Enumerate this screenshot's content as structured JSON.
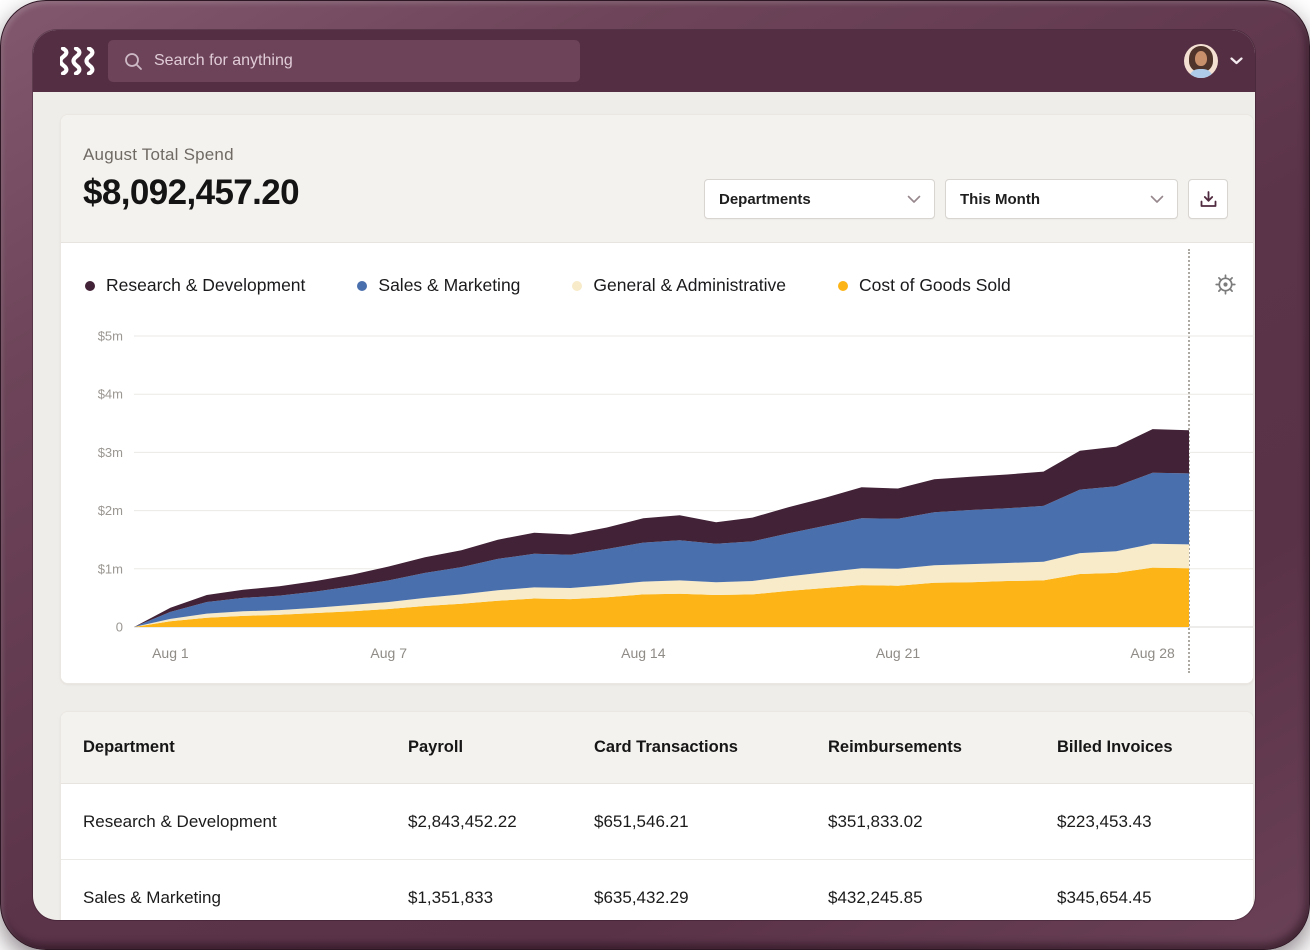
{
  "topbar": {
    "search_placeholder": "Search for anything"
  },
  "spend_card": {
    "title": "August Total Spend",
    "amount": "$8,092,457.20",
    "filters": [
      {
        "label": "Departments"
      },
      {
        "label": "This Month"
      }
    ]
  },
  "chart_data": {
    "type": "area",
    "stacked": true,
    "legend_position": "top",
    "grid": true,
    "values_unit": "millions_usd",
    "x_axis": {
      "tick_labels": [
        "Aug 1",
        "Aug 7",
        "Aug 14",
        "Aug 21",
        "Aug 28"
      ],
      "tick_days": [
        1,
        7,
        14,
        21,
        28
      ],
      "n_points": 30
    },
    "y_axis": {
      "tick_labels": [
        "$5m",
        "$4m",
        "$3m",
        "$2m",
        "$1m",
        "0"
      ],
      "tick_values": [
        5,
        4,
        3,
        2,
        1,
        0
      ],
      "ylim": [
        0,
        5
      ]
    },
    "series": [
      {
        "name": "Research & Development",
        "color": "#412236",
        "values": [
          0,
          0.07,
          0.12,
          0.14,
          0.16,
          0.18,
          0.2,
          0.24,
          0.27,
          0.29,
          0.33,
          0.36,
          0.35,
          0.37,
          0.42,
          0.43,
          0.37,
          0.41,
          0.45,
          0.48,
          0.53,
          0.52,
          0.57,
          0.57,
          0.58,
          0.59,
          0.67,
          0.68,
          0.75,
          0.74
        ]
      },
      {
        "name": "Sales & Marketing",
        "color": "#4A6FAD",
        "values": [
          0,
          0.12,
          0.2,
          0.23,
          0.25,
          0.28,
          0.32,
          0.37,
          0.43,
          0.47,
          0.54,
          0.58,
          0.57,
          0.62,
          0.67,
          0.69,
          0.66,
          0.68,
          0.74,
          0.8,
          0.86,
          0.86,
          0.91,
          0.93,
          0.94,
          0.96,
          1.09,
          1.12,
          1.22,
          1.22
        ]
      },
      {
        "name": "General & Administrative",
        "color": "#F7EBC9",
        "values": [
          0,
          0.04,
          0.07,
          0.08,
          0.08,
          0.09,
          0.11,
          0.12,
          0.14,
          0.16,
          0.18,
          0.19,
          0.19,
          0.21,
          0.22,
          0.23,
          0.22,
          0.23,
          0.25,
          0.27,
          0.29,
          0.29,
          0.3,
          0.31,
          0.31,
          0.32,
          0.36,
          0.37,
          0.41,
          0.41
        ]
      },
      {
        "name": "Cost of Goods Sold",
        "color": "#FCB417",
        "values": [
          0,
          0.1,
          0.16,
          0.19,
          0.21,
          0.24,
          0.27,
          0.31,
          0.36,
          0.4,
          0.45,
          0.49,
          0.48,
          0.51,
          0.56,
          0.57,
          0.55,
          0.56,
          0.62,
          0.67,
          0.72,
          0.71,
          0.76,
          0.77,
          0.79,
          0.8,
          0.91,
          0.93,
          1.02,
          1.01
        ]
      }
    ],
    "stack_order_bottom_to_top": [
      "Cost of Goods Sold",
      "General & Administrative",
      "Sales & Marketing",
      "Research & Development"
    ],
    "today_marker": {
      "style": "dotted-vertical-line",
      "at_day": 29
    }
  },
  "table": {
    "columns": [
      "Department",
      "Payroll",
      "Card Transactions",
      "Reimbursements",
      "Billed Invoices"
    ],
    "rows": [
      [
        "Research & Development",
        "$2,843,452.22",
        "$651,546.21",
        "$351,833.02",
        "$223,453.43"
      ],
      [
        "Sales & Marketing",
        "$1,351,833",
        "$635,432.29",
        "$432,245.85",
        "$345,654.45"
      ]
    ]
  },
  "icons": {
    "logo": "rippling-triple-wave-logo",
    "search": "magnifier",
    "user_menu": "chevron-down",
    "dropdown": "chevron-down",
    "download": "download-tray-arrow",
    "settings": "gear"
  },
  "colors": {
    "bezel": "#5E3750",
    "topbar": "#542E43",
    "search_field": "#6C4359",
    "page_bg": "#EFEDE9",
    "card_header_bg": "#F4F2EE",
    "accent_maroon": "#4F2A3E",
    "grid": "#ECEAE6",
    "axis_text": "#938F8A"
  }
}
